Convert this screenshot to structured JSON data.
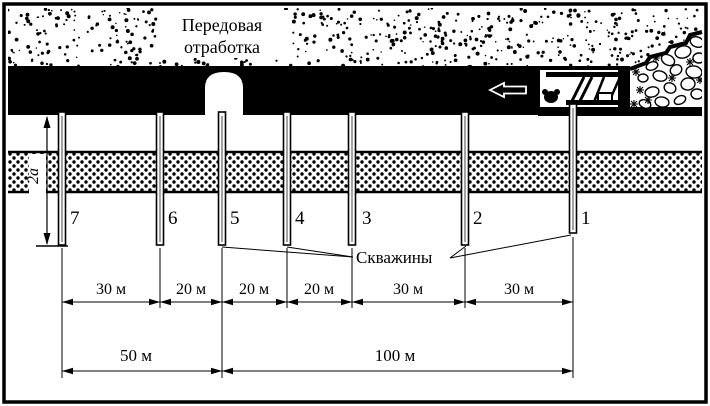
{
  "diagram": {
    "region_label": {
      "line1": "Передовая",
      "line2": "отработка"
    },
    "boreholes_label": "Скважины",
    "vertical_dim_label": "2a",
    "boreholes": [
      {
        "number": "7"
      },
      {
        "number": "6"
      },
      {
        "number": "5"
      },
      {
        "number": "4"
      },
      {
        "number": "3"
      },
      {
        "number": "2"
      },
      {
        "number": "1"
      }
    ],
    "upper_dims": [
      "30 м",
      "20 м",
      "20 м",
      "20 м",
      "30 м",
      "30 м"
    ],
    "lower_dims": [
      "50 м",
      "100 м"
    ],
    "colors": {
      "ink": "#000000",
      "paper": "#ffffff",
      "borehole_core": "#8a8a8a"
    }
  }
}
